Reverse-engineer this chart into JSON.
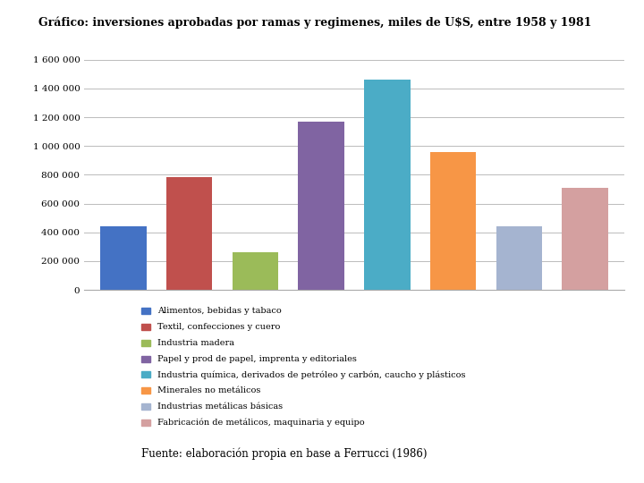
{
  "title": "Gráfico: inversiones aprobadas por ramas y regimenes, miles de U$S, entre 1958 y 1981",
  "categories": [
    "Alimentos, bebidas y tabaco",
    "Textil, confecciones y cuero",
    "Industria madera",
    "Papel y prod de papel, imprenta y editoriales",
    "Industria química, derivados de petróleo y carbón, caucho y plásticos",
    "Minerales no metálicos",
    "Industrias metálicas básicas",
    "Fabricación de metálicos, maquinaria y equipo"
  ],
  "values": [
    440000,
    785000,
    260000,
    1170000,
    1465000,
    960000,
    440000,
    710000
  ],
  "colors": [
    "#4472c4",
    "#c0504d",
    "#9bbb59",
    "#8064a2",
    "#4bacc6",
    "#f79646",
    "#a5b4d0",
    "#d4a0a0"
  ],
  "yticks": [
    0,
    200000,
    400000,
    600000,
    800000,
    1000000,
    1200000,
    1400000,
    1600000
  ],
  "ytick_labels": [
    "0",
    "200 000",
    "400 000",
    "600 000",
    "800 000",
    "1 000 000",
    "1 200 000",
    "1 400 000",
    "1 600 000"
  ],
  "source": "Fuente: elaboración propia en base a Ferrucci (1986)",
  "background_color": "#ffffff",
  "figsize": [
    7.2,
    5.4
  ],
  "dpi": 100
}
